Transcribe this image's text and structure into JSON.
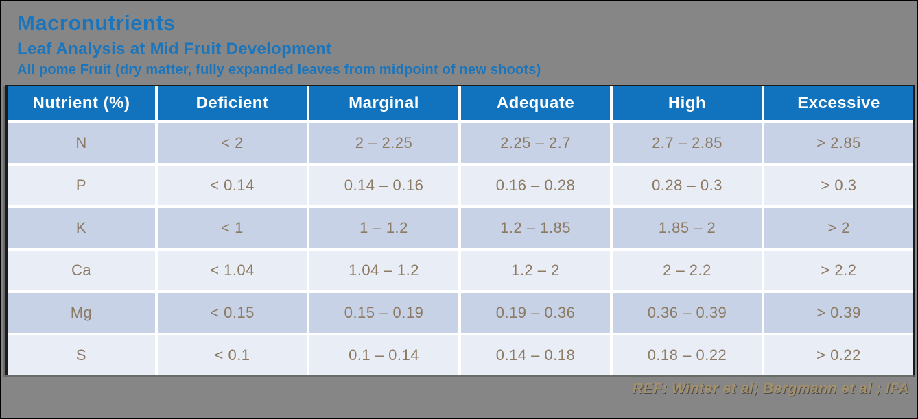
{
  "slide": {
    "title": "Macronutrients",
    "subtitle": "Leaf Analysis at Mid Fruit Development",
    "note": "All pome Fruit (dry matter, fully expanded leaves from midpoint of new shoots)"
  },
  "table": {
    "columns": [
      "Nutrient (%)",
      "Deficient",
      "Marginal",
      "Adequate",
      "High",
      "Excessive"
    ],
    "rows": [
      [
        "N",
        "< 2",
        "2 – 2.25",
        "2.25 – 2.7",
        "2.7 – 2.85",
        "> 2.85"
      ],
      [
        "P",
        "< 0.14",
        "0.14 – 0.16",
        "0.16 – 0.28",
        "0.28 – 0.3",
        "> 0.3"
      ],
      [
        "K",
        "< 1",
        "1 – 1.2",
        "1.2 – 1.85",
        "1.85 – 2",
        "> 2"
      ],
      [
        "Ca",
        "< 1.04",
        "1.04 – 1.2",
        "1.2 – 2",
        "2 – 2.2",
        "> 2.2"
      ],
      [
        "Mg",
        "< 0.15",
        "0.15 – 0.19",
        "0.19 – 0.36",
        "0.36 – 0.39",
        "> 0.39"
      ],
      [
        "S",
        "< 0.1",
        "0.1 – 0.14",
        "0.14 – 0.18",
        "0.18 – 0.22",
        "> 0.22"
      ]
    ]
  },
  "footer": {
    "reference": "REF: Winter et al; Bergmann et al ; IFA"
  },
  "colors": {
    "background": "#868686",
    "title_text": "#1B75BC",
    "header_bg": "#1173BD",
    "header_text": "#FFFFFF",
    "row_odd_bg": "#C7D2E6",
    "row_even_bg": "#E9EDF6",
    "cell_text": "#8C7A62",
    "reference_text": "#A3906C"
  }
}
